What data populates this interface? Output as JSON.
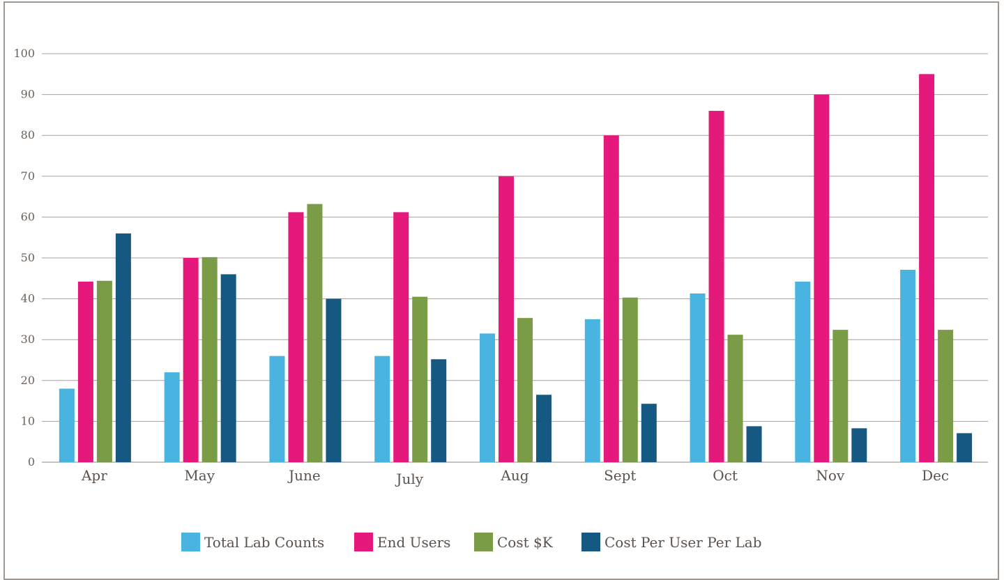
{
  "chart_data": {
    "type": "bar",
    "title": "",
    "xlabel": "",
    "ylabel": "",
    "ylim": [
      0,
      100
    ],
    "yticks": [
      0,
      10,
      20,
      30,
      40,
      50,
      60,
      70,
      80,
      90,
      100
    ],
    "grid": true,
    "legend_position": "bottom",
    "categories": [
      "Apr",
      "May",
      "June",
      "July",
      "Aug",
      "Sept",
      "Oct",
      "Nov",
      "Dec"
    ],
    "series": [
      {
        "name": "Total Lab Counts",
        "color": "#4ab4e0",
        "values": [
          18,
          22,
          26,
          26,
          31.5,
          35,
          41.3,
          44.2,
          47.1
        ]
      },
      {
        "name": "End Users",
        "color": "#e5197b",
        "values": [
          44.2,
          50,
          61.2,
          61.2,
          70,
          80,
          86,
          90,
          95
        ]
      },
      {
        "name": "Cost $K",
        "color": "#7a9c47",
        "values": [
          44.4,
          50.2,
          63.2,
          40.5,
          35.3,
          40.3,
          31.2,
          32.4,
          32.4
        ]
      },
      {
        "name": "Cost Per User Per Lab",
        "color": "#155882",
        "values": [
          56,
          46,
          40,
          25.2,
          16.5,
          14.3,
          8.8,
          8.3,
          7.1
        ]
      }
    ]
  }
}
